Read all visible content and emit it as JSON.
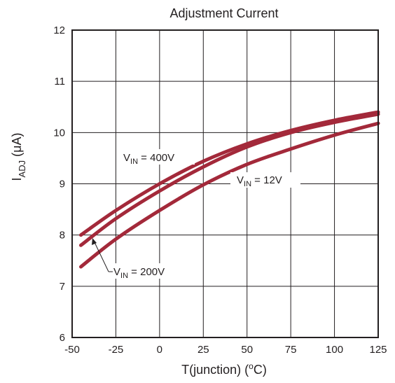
{
  "chart_data": {
    "type": "line",
    "title": "Adjustment Current",
    "xlabel": {
      "prefix": "T(junction) (",
      "sup": "o",
      "suffix": "C)"
    },
    "ylabel": {
      "main": "I",
      "sub": "ADJ",
      "suffix": " (μA)"
    },
    "xlim": [
      -50,
      125
    ],
    "ylim": [
      6,
      12
    ],
    "x_ticks": [
      -50,
      -25,
      0,
      25,
      50,
      75,
      100,
      125
    ],
    "y_ticks": [
      6,
      7,
      8,
      9,
      10,
      11,
      12
    ],
    "x_tick_labels": [
      "-50",
      "-25",
      "0",
      "25",
      "50",
      "75",
      "100",
      "125"
    ],
    "y_tick_labels": [
      "6",
      "7",
      "8",
      "9",
      "10",
      "11",
      "12"
    ],
    "grid": true,
    "line_color": "#a3293a",
    "series": [
      {
        "name": "V IN = 400V",
        "x": [
          -45,
          -25,
          0,
          25,
          50,
          75,
          100,
          125
        ],
        "y": [
          8.0,
          8.48,
          9.0,
          9.44,
          9.78,
          10.04,
          10.24,
          10.4
        ]
      },
      {
        "name": "V IN = 200V",
        "x": [
          -45,
          -25,
          0,
          25,
          50,
          75,
          100,
          125
        ],
        "y": [
          7.8,
          8.32,
          8.86,
          9.33,
          9.72,
          10.0,
          10.2,
          10.36
        ]
      },
      {
        "name": "V IN = 12V",
        "x": [
          -45,
          -25,
          0,
          25,
          50,
          75,
          100,
          125
        ],
        "y": [
          7.38,
          7.92,
          8.48,
          8.98,
          9.38,
          9.68,
          9.95,
          10.18
        ]
      }
    ],
    "annotations": [
      {
        "id": "vin-400",
        "main": "V",
        "sub": "IN",
        "suffix": " = 400V"
      },
      {
        "id": "vin-12",
        "main": "V",
        "sub": "IN",
        "suffix": " = 12V"
      },
      {
        "id": "vin-200",
        "main": "V",
        "sub": "IN",
        "suffix": " = 200V"
      }
    ]
  }
}
